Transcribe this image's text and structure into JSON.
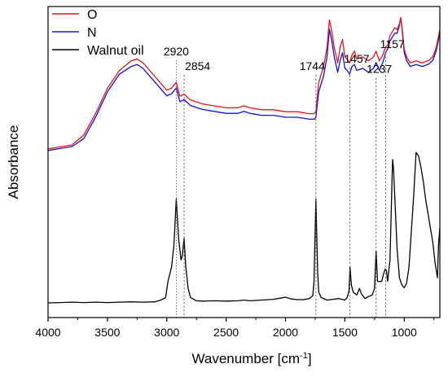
{
  "chart_data": {
    "type": "line",
    "title": "",
    "xlabel": "Wavenumber [cm",
    "xlabel_sup": "-1",
    "xlabel_close": "]",
    "ylabel": "Absorbance",
    "xlim": [
      4000,
      700
    ],
    "x_reversed": true,
    "grid": false,
    "legend_placement": "top-left",
    "x_ticks": [
      4000,
      3500,
      3000,
      2500,
      2000,
      1500,
      1000
    ],
    "x_tick_labels": [
      "4000",
      "3500",
      "3000",
      "2500",
      "2000",
      "1500",
      "1000"
    ],
    "y_ticks_shown": false,
    "series": [
      {
        "name": "O",
        "color": "#e8141c",
        "x": [
          4000,
          3900,
          3800,
          3700,
          3600,
          3500,
          3400,
          3300,
          3250,
          3200,
          3100,
          3000,
          2960,
          2920,
          2890,
          2854,
          2800,
          2700,
          2600,
          2500,
          2400,
          2350,
          2300,
          2200,
          2100,
          2000,
          1900,
          1800,
          1760,
          1744,
          1720,
          1700,
          1680,
          1650,
          1630,
          1610,
          1590,
          1560,
          1540,
          1520,
          1500,
          1480,
          1460,
          1440,
          1420,
          1400,
          1350,
          1300,
          1260,
          1237,
          1210,
          1180,
          1157,
          1140,
          1120,
          1100,
          1080,
          1060,
          1040,
          1030,
          1020,
          1000,
          980,
          950,
          900,
          850,
          800,
          760,
          730,
          710,
          700
        ],
        "y": [
          0.18,
          0.19,
          0.2,
          0.25,
          0.36,
          0.49,
          0.58,
          0.63,
          0.64,
          0.62,
          0.55,
          0.48,
          0.49,
          0.52,
          0.45,
          0.46,
          0.43,
          0.41,
          0.4,
          0.39,
          0.39,
          0.4,
          0.39,
          0.38,
          0.38,
          0.37,
          0.37,
          0.36,
          0.36,
          0.37,
          0.52,
          0.56,
          0.6,
          0.7,
          0.84,
          0.78,
          0.7,
          0.62,
          0.7,
          0.74,
          0.65,
          0.64,
          0.62,
          0.66,
          0.68,
          0.64,
          0.65,
          0.63,
          0.65,
          0.68,
          0.63,
          0.66,
          0.7,
          0.71,
          0.76,
          0.78,
          0.8,
          0.79,
          0.82,
          0.85,
          0.81,
          0.69,
          0.65,
          0.62,
          0.63,
          0.62,
          0.63,
          0.65,
          0.7,
          0.76,
          0.79
        ]
      },
      {
        "name": "N",
        "color": "#1010d8",
        "x": [
          4000,
          3900,
          3800,
          3700,
          3600,
          3500,
          3400,
          3300,
          3250,
          3200,
          3100,
          3000,
          2960,
          2920,
          2890,
          2854,
          2800,
          2700,
          2600,
          2500,
          2400,
          2350,
          2300,
          2200,
          2100,
          2000,
          1900,
          1800,
          1760,
          1744,
          1720,
          1700,
          1680,
          1650,
          1630,
          1610,
          1590,
          1560,
          1540,
          1520,
          1500,
          1480,
          1460,
          1440,
          1420,
          1400,
          1350,
          1300,
          1260,
          1237,
          1210,
          1180,
          1157,
          1140,
          1120,
          1100,
          1080,
          1060,
          1040,
          1030,
          1020,
          1000,
          980,
          950,
          900,
          850,
          800,
          760,
          730,
          710,
          700
        ],
        "y": [
          0.18,
          0.19,
          0.2,
          0.24,
          0.35,
          0.48,
          0.57,
          0.61,
          0.62,
          0.6,
          0.53,
          0.46,
          0.47,
          0.5,
          0.43,
          0.44,
          0.41,
          0.39,
          0.38,
          0.37,
          0.37,
          0.38,
          0.37,
          0.36,
          0.36,
          0.35,
          0.35,
          0.34,
          0.34,
          0.35,
          0.48,
          0.52,
          0.56,
          0.66,
          0.8,
          0.74,
          0.66,
          0.58,
          0.64,
          0.68,
          0.6,
          0.59,
          0.57,
          0.61,
          0.62,
          0.59,
          0.6,
          0.58,
          0.6,
          0.63,
          0.59,
          0.63,
          0.68,
          0.7,
          0.74,
          0.76,
          0.78,
          0.78,
          0.82,
          0.86,
          0.81,
          0.68,
          0.64,
          0.61,
          0.62,
          0.61,
          0.62,
          0.64,
          0.69,
          0.75,
          0.78
        ]
      },
      {
        "name": "Walnut oil",
        "color": "#000000",
        "x": [
          4000,
          3900,
          3800,
          3700,
          3600,
          3500,
          3400,
          3300,
          3200,
          3100,
          3050,
          3010,
          2990,
          2960,
          2940,
          2920,
          2900,
          2880,
          2870,
          2854,
          2840,
          2820,
          2800,
          2750,
          2700,
          2600,
          2500,
          2400,
          2350,
          2300,
          2200,
          2100,
          2050,
          2000,
          1950,
          1900,
          1850,
          1800,
          1770,
          1760,
          1744,
          1730,
          1720,
          1700,
          1650,
          1600,
          1550,
          1500,
          1480,
          1465,
          1457,
          1445,
          1430,
          1400,
          1377,
          1360,
          1330,
          1300,
          1270,
          1250,
          1237,
          1225,
          1210,
          1190,
          1175,
          1160,
          1150,
          1140,
          1120,
          1100,
          1097,
          1090,
          1080,
          1060,
          1040,
          1020,
          1000,
          980,
          960,
          940,
          920,
          900,
          880,
          860,
          840,
          820,
          800,
          780,
          760,
          740,
          720,
          712,
          700
        ],
        "y": [
          0.0,
          0.001,
          0.002,
          0.001,
          0.002,
          0.001,
          0.002,
          0.003,
          0.002,
          0.003,
          0.008,
          0.015,
          0.06,
          0.1,
          0.16,
          0.29,
          0.18,
          0.12,
          0.13,
          0.18,
          0.1,
          0.04,
          0.015,
          0.006,
          0.005,
          0.006,
          0.005,
          0.006,
          0.008,
          0.006,
          0.008,
          0.01,
          0.013,
          0.016,
          0.011,
          0.009,
          0.009,
          0.012,
          0.02,
          0.06,
          0.29,
          0.09,
          0.03,
          0.015,
          0.008,
          0.01,
          0.012,
          0.008,
          0.015,
          0.035,
          0.1,
          0.05,
          0.03,
          0.022,
          0.04,
          0.025,
          0.012,
          0.018,
          0.022,
          0.04,
          0.145,
          0.06,
          0.06,
          0.06,
          0.08,
          0.095,
          0.09,
          0.06,
          0.12,
          0.38,
          0.4,
          0.37,
          0.3,
          0.15,
          0.07,
          0.05,
          0.042,
          0.055,
          0.1,
          0.2,
          0.3,
          0.42,
          0.41,
          0.38,
          0.34,
          0.29,
          0.25,
          0.21,
          0.17,
          0.11,
          0.07,
          0.16,
          0.21
        ]
      }
    ],
    "annotations": [
      {
        "label": "2920",
        "x": 2920,
        "label_x": 2920,
        "label_row": 1,
        "line": "dotted"
      },
      {
        "label": "2854",
        "x": 2854,
        "label_x": 2740,
        "label_row": 2,
        "line": "dashed"
      },
      {
        "label": "1744",
        "x": 1744,
        "label_x": 1775,
        "label_row": 2,
        "line": "dashed"
      },
      {
        "label": "1457",
        "x": 1457,
        "label_x": 1400,
        "label_row": 1.5,
        "line": "dashed"
      },
      {
        "label": "1237",
        "x": 1237,
        "label_x": 1210,
        "label_row": 2.2,
        "line": "dashed"
      },
      {
        "label": "1157",
        "x": 1157,
        "label_x": 1100,
        "label_row": 0.5,
        "line": "dashed"
      }
    ]
  }
}
